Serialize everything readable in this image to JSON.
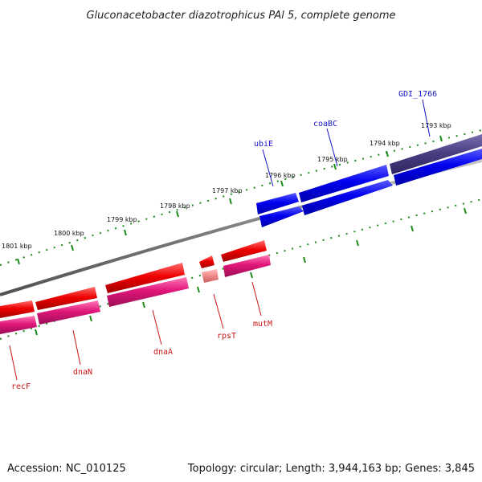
{
  "title": "Gluconacetobacter diazotrophicus PAl 5, complete genome",
  "footer": {
    "accession": "Accession: NC_010125",
    "summary": "Topology: circular; Length: 3,944,163 bp; Genes: 3,845"
  },
  "scale_labels": [
    "1793 kbp",
    "1794 kbp",
    "1795 kbp",
    "1796 kbp",
    "1797 kbp",
    "1798 kbp",
    "1799 kbp",
    "1800 kbp",
    "1801 kbp"
  ],
  "gene_labels": [
    "GDI_1766",
    "coaBC",
    "ubiE",
    "recF",
    "dnaN",
    "dnaA",
    "rpsT",
    "mutM"
  ],
  "colors": {
    "forward_cds": "#0000ee",
    "forward_cds_purple": "#4b3f82",
    "reverse_cds": "#ee0000",
    "reverse_gene": "#e0167a",
    "rRNA_light": "#f08a8a",
    "backbone": "#808080",
    "ticks": "#1a8a1a",
    "forward_label": "#1515c8",
    "reverse_label": "#c81515"
  }
}
